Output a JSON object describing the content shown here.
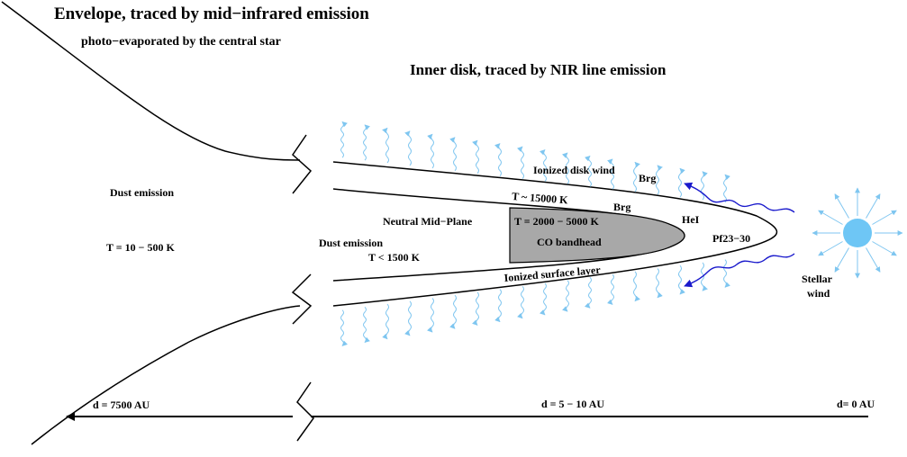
{
  "labels": {
    "envelope_title": "Envelope, traced by mid−infrared emission",
    "envelope_subtitle": "photo−evaporated by the central star",
    "inner_disk_title": "Inner disk, traced by NIR line emission",
    "dust_emission_outer": "Dust emission",
    "temp_outer": "T = 10 − 500 K",
    "ionized_disk_wind": "Ionized disk wind",
    "brg_top": "Brg",
    "temp_surface": "T ~ 15000 K",
    "brg_mid": "Brg",
    "neutral_mid_plane": "Neutral Mid−Plane",
    "temp_co": "T = 2000 − 5000 K",
    "hei": "HeI",
    "dust_emission_inner": "Dust emission",
    "co_bandhead": "CO bandhead",
    "pf_lines": "Pf23−30",
    "temp_inner": "T < 1500 K",
    "ionized_surface_layer": "Ionized surface layer",
    "stellar_wind_1": "Stellar",
    "stellar_wind_2": "wind",
    "distance_far": "d =  7500 AU",
    "distance_mid": "d = 5 − 10 AU",
    "distance_zero": "d= 0 AU"
  },
  "colors": {
    "wind_wavy": "#7fc6f0",
    "stellar_wind_wavy": "#1a1acc",
    "star_fill": "#6ec6f5",
    "star_rays": "#7fc6f0",
    "co_region": "#a8a8a8",
    "lines": "#000000"
  },
  "icons": {
    "star": "star-icon",
    "axis_arrow": "arrow-left-icon"
  }
}
